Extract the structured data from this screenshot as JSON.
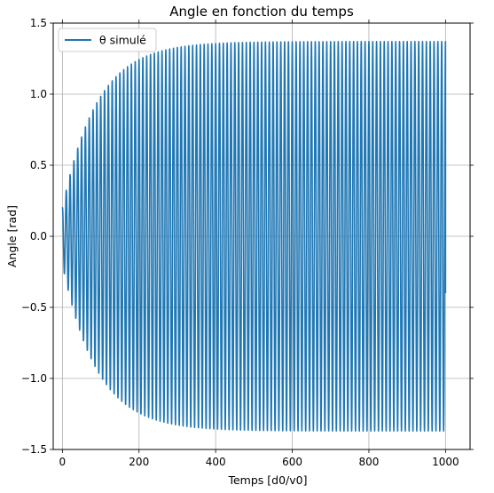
{
  "chart_data": {
    "type": "line",
    "title": "Angle en fonction du temps",
    "xlabel": "Temps [d0/v0]",
    "ylabel": "Angle [rad]",
    "xlim": [
      -24,
      1064
    ],
    "ylim": [
      -1.5,
      1.5
    ],
    "x_ticks": [
      0,
      200,
      400,
      600,
      800,
      1000
    ],
    "x_tick_labels": [
      "0",
      "200",
      "400",
      "600",
      "800",
      "1000"
    ],
    "y_ticks": [
      -1.5,
      -1.0,
      -0.5,
      0.0,
      0.5,
      1.0,
      1.5
    ],
    "y_tick_labels": [
      "−1.5",
      "−1.0",
      "−0.5",
      "0.0",
      "0.5",
      "1.0",
      "1.5"
    ],
    "grid": true,
    "legend_position": "top-left",
    "series": [
      {
        "name": "θ simulé",
        "color": "#1f77b4",
        "x_start": 0,
        "x_end": 1000,
        "initial_value": 0.2,
        "initial_amplitude": 0.2,
        "saturation_amplitude": 1.37,
        "growth_time_constant": 90,
        "period": 10,
        "end_value": -0.4
      }
    ]
  }
}
